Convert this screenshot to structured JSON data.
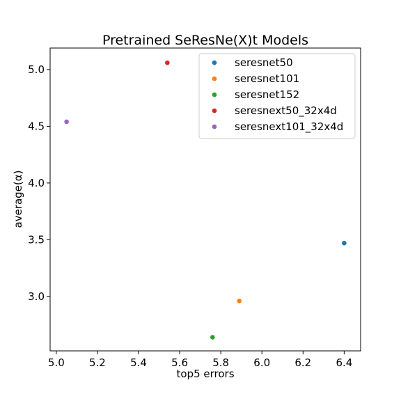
{
  "chart_data": {
    "type": "scatter",
    "title": "Pretrained SeResNe(X)t Models",
    "xlabel": "top5 errors",
    "ylabel": "average(α)",
    "xlim": [
      4.97,
      6.48
    ],
    "ylim": [
      2.52,
      5.19
    ],
    "xticks": [
      5.0,
      5.2,
      5.4,
      5.6,
      5.8,
      6.0,
      6.2,
      6.4
    ],
    "xtick_labels": [
      "5.0",
      "5.2",
      "5.4",
      "5.6",
      "5.8",
      "6.0",
      "6.2",
      "6.4"
    ],
    "yticks": [
      3.0,
      3.5,
      4.0,
      4.5,
      5.0
    ],
    "ytick_labels": [
      "3.0",
      "3.5",
      "4.0",
      "4.5",
      "5.0"
    ],
    "grid": false,
    "legend_position": "top-right",
    "series": [
      {
        "name": "seresnet50",
        "color": "#1f77b4",
        "points": [
          {
            "x": 6.4,
            "y": 3.47
          }
        ]
      },
      {
        "name": "seresnet101",
        "color": "#ff7f0e",
        "points": [
          {
            "x": 5.89,
            "y": 2.96
          }
        ]
      },
      {
        "name": "seresnet152",
        "color": "#2ca02c",
        "points": [
          {
            "x": 5.76,
            "y": 2.64
          }
        ]
      },
      {
        "name": "seresnext50_32x4d",
        "color": "#d62728",
        "points": [
          {
            "x": 5.54,
            "y": 5.06
          }
        ]
      },
      {
        "name": "seresnext101_32x4d",
        "color": "#9467bd",
        "points": [
          {
            "x": 5.05,
            "y": 4.54
          }
        ]
      }
    ]
  }
}
